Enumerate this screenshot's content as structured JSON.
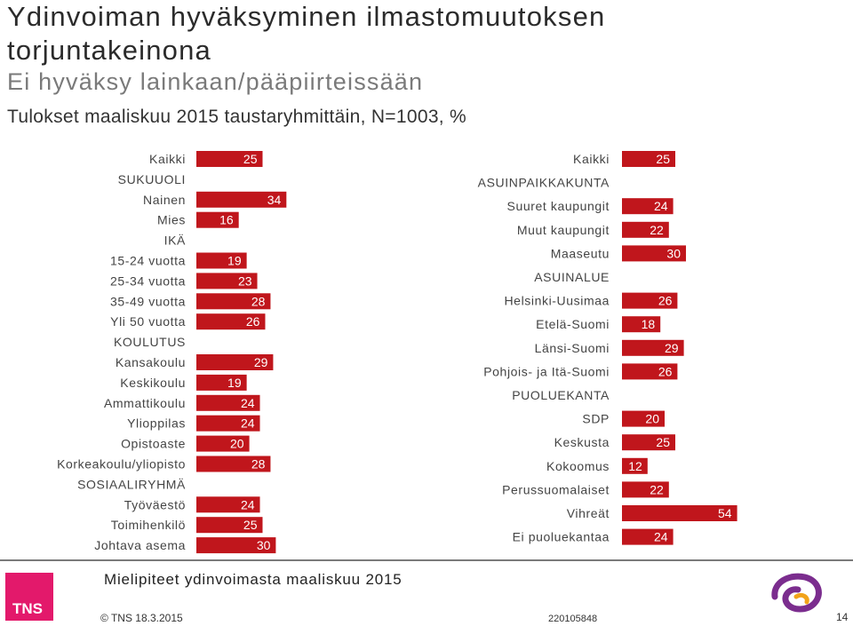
{
  "title": "Ydinvoiman hyväksyminen ilmastomuutoksen torjuntakeinona",
  "subtitle": "Ei hyväksy lainkaan/pääpiirteissään",
  "caption": "Tulokset maaliskuu 2015 taustaryhmittäin, N=1003, %",
  "bar_color": "#c0161c",
  "chart_data": [
    {
      "type": "bar",
      "orientation": "horizontal",
      "categories": [
        "Kaikki",
        "SUKUUOLI",
        "Nainen",
        "Mies",
        "IKÄ",
        "15-24 vuotta",
        "25-34 vuotta",
        "35-49 vuotta",
        "Yli 50 vuotta",
        "KOULUTUS",
        "Kansakoulu",
        "Keskikoulu",
        "Ammattikoulu",
        "Ylioppilas",
        "Opistoaste",
        "Korkeakoulu/yliopisto",
        "SOSIAALIRYHMÄ",
        "Työväestö",
        "Toimihenkilö",
        "Johtava asema"
      ],
      "values": [
        25,
        null,
        34,
        16,
        null,
        19,
        23,
        28,
        26,
        null,
        29,
        19,
        24,
        24,
        20,
        28,
        null,
        24,
        25,
        30
      ]
    },
    {
      "type": "bar",
      "orientation": "horizontal",
      "categories": [
        "Kaikki",
        "ASUINPAIKKAKUNTA",
        "Suuret kaupungit",
        "Muut kaupungit",
        "Maaseutu",
        "ASUINALUE",
        "Helsinki-Uusimaa",
        "Etelä-Suomi",
        "Länsi-Suomi",
        "Pohjois- ja Itä-Suomi",
        "PUOLUEKANTA",
        "SDP",
        "Keskusta",
        "Kokoomus",
        "Perussuomalaiset",
        "Vihreät",
        "Ei puoluekantaa"
      ],
      "values": [
        25,
        null,
        24,
        22,
        30,
        null,
        26,
        18,
        29,
        26,
        null,
        20,
        25,
        12,
        22,
        54,
        24
      ]
    }
  ],
  "footer": {
    "caption": "Mielipiteet ydinvoimasta maaliskuu 2015",
    "logo_text": "TNS",
    "copyright": "© TNS 18.3.2015",
    "job_number": "220105848",
    "page_number": "14"
  }
}
